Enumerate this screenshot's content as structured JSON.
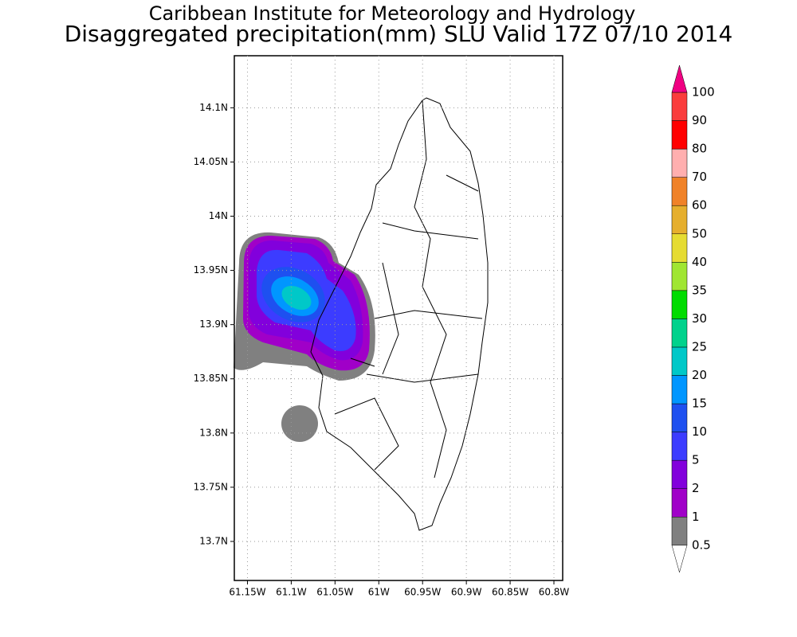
{
  "title": "Caribbean Institute for Meteorology and Hydrology",
  "subtitle": "Disaggregated precipitation(mm) SLU Valid 17Z 07/10 2014",
  "map": {
    "xlim": [
      -61.165,
      -60.79
    ],
    "ylim": [
      13.664,
      14.148
    ],
    "xticks": [
      {
        "value": -61.15,
        "label": "61.15W"
      },
      {
        "value": -61.1,
        "label": "61.1W"
      },
      {
        "value": -61.05,
        "label": "61.05W"
      },
      {
        "value": -61,
        "label": "61W"
      },
      {
        "value": -60.95,
        "label": "60.95W"
      },
      {
        "value": -60.9,
        "label": "60.9W"
      },
      {
        "value": -60.85,
        "label": "60.85W"
      },
      {
        "value": -60.8,
        "label": "60.8W"
      }
    ],
    "yticks": [
      {
        "value": 14.1,
        "label": "14.1N"
      },
      {
        "value": 14.05,
        "label": "14.05N"
      },
      {
        "value": 14,
        "label": "14N"
      },
      {
        "value": 13.95,
        "label": "13.95N"
      },
      {
        "value": 13.9,
        "label": "13.9N"
      },
      {
        "value": 13.85,
        "label": "13.85N"
      },
      {
        "value": 13.8,
        "label": "13.8N"
      },
      {
        "value": 13.75,
        "label": "13.75N"
      },
      {
        "value": 13.7,
        "label": "13.7N"
      }
    ],
    "grid": true
  },
  "colorbar": {
    "levels": [
      0.5,
      1,
      2,
      5,
      10,
      15,
      20,
      25,
      30,
      35,
      40,
      50,
      60,
      70,
      80,
      90,
      100
    ],
    "colors": [
      "#808080",
      "#a000c8",
      "#8200dc",
      "#3c3cff",
      "#1e50f0",
      "#0096ff",
      "#00c8c8",
      "#00d28c",
      "#00dc00",
      "#a0e632",
      "#e6dc32",
      "#e6af2d",
      "#f08228",
      "#ffafaf",
      "#ff0000",
      "#fa3c3c"
    ],
    "under_color": "#ffffff",
    "over_color": "#f00082"
  }
}
